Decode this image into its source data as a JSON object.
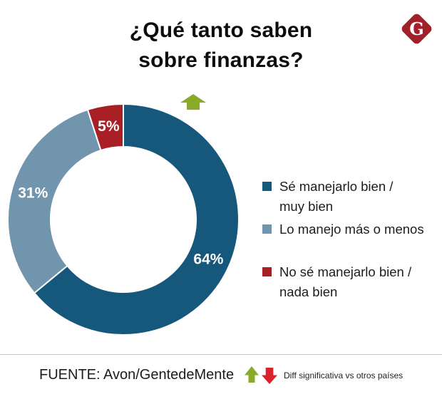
{
  "header": {
    "title": "¿Qué tanto saben\nsobre finanzas?",
    "logo_letter": "G"
  },
  "chart_data": {
    "type": "pie",
    "subtype": "donut",
    "title": "¿Qué tanto saben sobre finanzas?",
    "unit": "%",
    "start_angle_deg": 0,
    "direction": "clockwise",
    "segments": [
      {
        "label": "Sé manejarlo bien / muy bien",
        "value": 64,
        "display": "64%",
        "color": "#16587b"
      },
      {
        "label": "Lo manejo más o menos",
        "value": 31,
        "display": "31%",
        "color": "#7195ad"
      },
      {
        "label": "No sé manejarlo bien / nada bien",
        "value": 5,
        "display": "5%",
        "color": "#a82025"
      }
    ],
    "annotations": [
      {
        "type": "up-arrow",
        "meaning": "Diff significativa vs otros países",
        "applies_to": "64%"
      }
    ],
    "legend_position": "right"
  },
  "legend": {
    "items": [
      {
        "label": "Sé manejarlo bien /\nmuy bien",
        "color": "#16587b"
      },
      {
        "label": "Lo manejo más o menos",
        "color": "#7195ad"
      },
      {
        "label": "No sé manejarlo bien /\nnada bien",
        "color": "#a82025"
      }
    ]
  },
  "footer": {
    "source": "FUENTE: Avon/GentedeMente",
    "note": "Diff significativa vs otros países"
  },
  "colors": {
    "arrow_green": "#8aab2a",
    "arrow_red": "#d8232a",
    "logo_red": "#a12029",
    "text": "#1d1d1b"
  }
}
